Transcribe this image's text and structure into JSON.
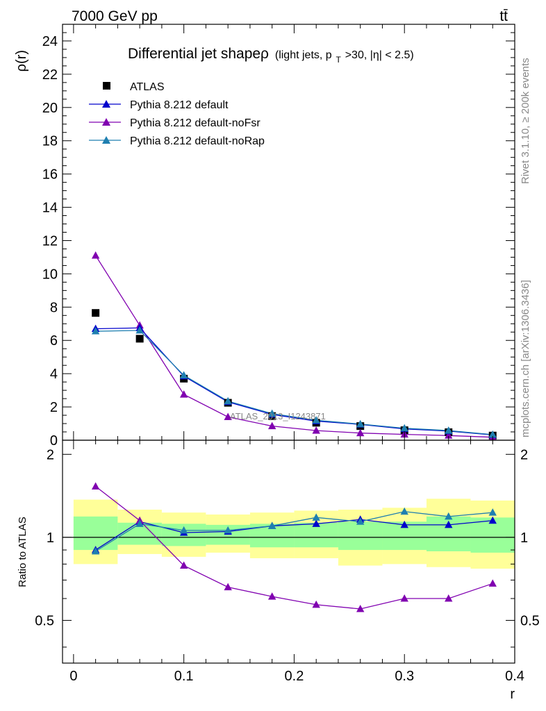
{
  "header": {
    "left_label": "7000 GeV pp",
    "right_label": "tt̄"
  },
  "side_labels": {
    "rivet": "Rivet 3.1.10, ≥ 200k events",
    "mcplots": "mcplots.cern.ch [arXiv:1306.3436]"
  },
  "chart_data": [
    {
      "type": "line",
      "panel": "main",
      "title_main": "Differential jet shapeρ",
      "title_sub_prefix": "(light jets, p",
      "title_sub_subscript": "T",
      "title_sub_suffix": ">30, |η| < 2.5)",
      "watermark": "ATLAS_2013_I1243871",
      "ylabel": "ρ(r)",
      "xlabel": "r",
      "xlim": [
        -0.01,
        0.4
      ],
      "ylim": [
        0,
        25
      ],
      "yticks": [
        0,
        2,
        4,
        6,
        8,
        10,
        12,
        14,
        16,
        18,
        20,
        22,
        24
      ],
      "ytick_labels": [
        "0",
        "2",
        "4",
        "6",
        "8",
        "10",
        "12",
        "14",
        "16",
        "18",
        "20",
        "22",
        "24"
      ],
      "x": [
        0.02,
        0.06,
        0.1,
        0.14,
        0.18,
        0.22,
        0.26,
        0.3,
        0.34,
        0.38
      ],
      "series": [
        {
          "name": "ATLAS",
          "color": "#000000",
          "marker": "square",
          "line": false,
          "values": [
            7.65,
            6.1,
            3.7,
            2.25,
            1.45,
            1.05,
            0.85,
            0.6,
            0.48,
            0.28
          ]
        },
        {
          "name": "Pythia 8.212 default",
          "color": "#0000cc",
          "marker": "triangle",
          "line": true,
          "values": [
            6.7,
            6.75,
            3.85,
            2.3,
            1.55,
            1.15,
            0.95,
            0.68,
            0.55,
            0.32
          ]
        },
        {
          "name": "Pythia 8.212 default-noFsr",
          "color": "#8000b0",
          "marker": "triangle",
          "line": true,
          "values": [
            11.1,
            6.9,
            2.75,
            1.4,
            0.85,
            0.58,
            0.43,
            0.35,
            0.28,
            0.18
          ]
        },
        {
          "name": "Pythia 8.212 default-noRap",
          "color": "#1f7fb0",
          "marker": "triangle",
          "line": true,
          "values": [
            6.55,
            6.6,
            3.9,
            2.35,
            1.6,
            1.2,
            0.97,
            0.72,
            0.58,
            0.34
          ]
        }
      ]
    },
    {
      "type": "line",
      "panel": "ratio",
      "ylabel": "Ratio to ATLAS",
      "xlabel": "r",
      "xlim": [
        -0.01,
        0.4
      ],
      "ylim": [
        0.35,
        2.25
      ],
      "yticks": [
        0.5,
        1,
        2
      ],
      "ytick_labels": [
        "0.5",
        "1",
        "2"
      ],
      "xticks": [
        0,
        0.1,
        0.2,
        0.3,
        0.4
      ],
      "xtick_labels": [
        "0",
        "0.1",
        "0.2",
        "0.3",
        "0.4"
      ],
      "bin_edges": [
        0.0,
        0.04,
        0.08,
        0.12,
        0.16,
        0.2,
        0.24,
        0.28,
        0.32,
        0.36,
        0.4
      ],
      "band_yellow_low": [
        0.8,
        0.87,
        0.85,
        0.88,
        0.84,
        0.84,
        0.79,
        0.8,
        0.78,
        0.77
      ],
      "band_yellow_high": [
        1.37,
        1.26,
        1.23,
        1.21,
        1.23,
        1.25,
        1.26,
        1.28,
        1.38,
        1.36
      ],
      "band_green_low": [
        0.9,
        0.94,
        0.93,
        0.94,
        0.92,
        0.92,
        0.9,
        0.9,
        0.89,
        0.88
      ],
      "band_green_high": [
        1.19,
        1.13,
        1.12,
        1.11,
        1.12,
        1.13,
        1.14,
        1.14,
        1.19,
        1.18
      ],
      "band_colors": {
        "yellow": "#ffff99",
        "green": "#99ff99"
      },
      "reference_line": 1.0,
      "x": [
        0.02,
        0.06,
        0.1,
        0.14,
        0.18,
        0.22,
        0.26,
        0.3,
        0.34,
        0.38
      ],
      "series": [
        {
          "name": "Pythia 8.212 default",
          "color": "#0000cc",
          "values": [
            0.9,
            1.14,
            1.04,
            1.05,
            1.1,
            1.12,
            1.16,
            1.11,
            1.11,
            1.15
          ]
        },
        {
          "name": "Pythia 8.212 default-noFsr",
          "color": "#8000b0",
          "values": [
            1.53,
            1.15,
            0.79,
            0.66,
            0.61,
            0.57,
            0.55,
            0.6,
            0.6,
            0.68
          ]
        },
        {
          "name": "Pythia 8.212 default-noRap",
          "color": "#1f7fb0",
          "values": [
            0.89,
            1.12,
            1.06,
            1.06,
            1.1,
            1.18,
            1.14,
            1.24,
            1.19,
            1.23
          ]
        }
      ]
    }
  ]
}
